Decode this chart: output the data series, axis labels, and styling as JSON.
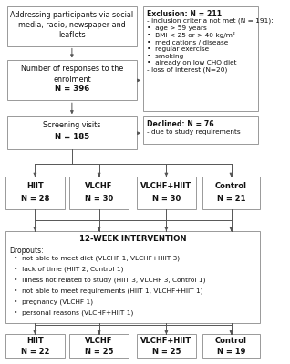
{
  "bg_color": "#ffffff",
  "box_facecolor": "#ffffff",
  "border_color": "#999999",
  "text_color": "#111111",
  "arrow_color": "#555555",
  "title": "12-WEEK INTERVENTION",
  "addr_text": "Addressing participants via social\nmedia, radio, newspaper and\nleaflets",
  "enrol_text": "Number of responses to the\nenrolment\nN = 396",
  "screen_text": "Screening visits\nN = 185",
  "excl_title": "Exclusion: N = 211",
  "excl_body": "- inclusion criteria not met (N = 191):\n•  age > 59 years\n•  BMI < 25 or > 40 kg/m²\n•  medications / disease\n•  regular exercise\n•  smoking\n•  already on low CHO diet\n- loss of interest (N=20)",
  "decl_title": "Declined: N = 76",
  "decl_body": "- due to study requirements",
  "groups1": [
    "HIIT\nN = 28",
    "VLCHF\nN = 30",
    "VLCHF+HIIT\nN = 30",
    "Control\nN = 21"
  ],
  "groups2": [
    "HIIT\nN = 22",
    "VLCHF\nN = 25",
    "VLCHF+HIIT\nN = 25",
    "Control\nN = 19"
  ],
  "interv_title": "12-WEEK INTERVENTION",
  "dropout_label": "Dropouts:",
  "dropouts": [
    "not able to meet diet (VLCHF 1, VLCHF+HIIT 3)",
    "lack of time (HIIT 2, Control 1)",
    "illness not related to study (HIIT 3, VLCHF 3, Control 1)",
    "not able to meet requirements (HIIT 1, VLCHF+HIIT 1)",
    "pregnancy (VLCHF 1)",
    "personal reasons (VLCHF+HIIT 1)"
  ]
}
